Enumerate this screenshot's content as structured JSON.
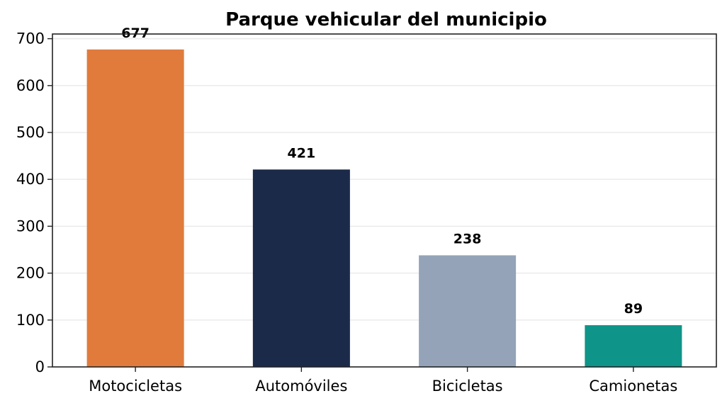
{
  "chart_data": {
    "type": "bar",
    "title": "Parque vehicular del municipio",
    "xlabel": "",
    "ylabel": "",
    "categories": [
      "Motocicletas",
      "Automóviles",
      "Bicicletas",
      "Camionetas"
    ],
    "values": [
      677,
      421,
      238,
      89
    ],
    "data_labels": [
      "677",
      "421",
      "238",
      "89"
    ],
    "colors": [
      "#e07b3c",
      "#1c2a4a",
      "#94a3b8",
      "#0e9488"
    ],
    "ylim": [
      0,
      710
    ],
    "yticks": [
      0,
      100,
      200,
      300,
      400,
      500,
      600,
      700
    ],
    "ytick_labels": [
      "0",
      "100",
      "200",
      "300",
      "400",
      "500",
      "600",
      "700"
    ],
    "grid": true,
    "grid_axis": "y",
    "legend": "none"
  }
}
